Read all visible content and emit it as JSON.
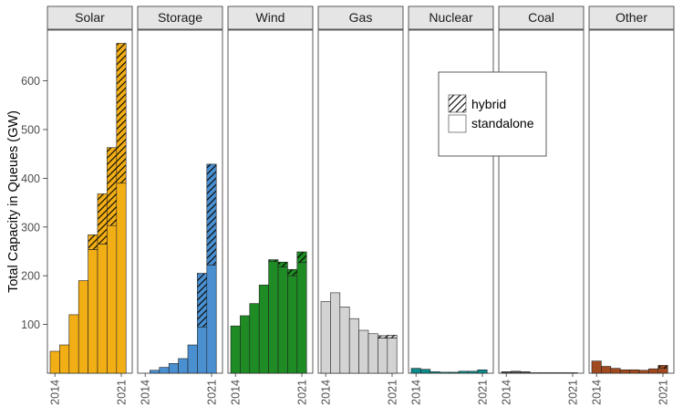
{
  "chart_data": {
    "type": "bar",
    "stacked": true,
    "faceted": true,
    "ylabel": "Total Capacity in Queues (GW)",
    "xlabel": "",
    "years": [
      2014,
      2015,
      2016,
      2017,
      2018,
      2019,
      2020,
      2021
    ],
    "x_tick_labels": [
      "2014",
      "2021"
    ],
    "y_ticks": [
      100,
      200,
      300,
      400,
      500,
      600
    ],
    "ylim": [
      0,
      700
    ],
    "grid": false,
    "legend": {
      "placement": "inside, upper area spanning Nuclear and Coal panels",
      "entries": [
        {
          "label": "hybrid",
          "pattern": "hatched"
        },
        {
          "label": "standalone",
          "pattern": "solid"
        }
      ]
    },
    "facets": [
      {
        "name": "Solar",
        "color": "#F2AE15",
        "standalone": [
          45,
          58,
          120,
          190,
          254,
          265,
          303,
          390
        ],
        "hybrid": [
          0,
          0,
          0,
          0,
          30,
          103,
          160,
          287
        ]
      },
      {
        "name": "Storage",
        "color": "#4A90D0",
        "standalone": [
          0,
          6,
          12,
          20,
          30,
          58,
          95,
          222
        ],
        "hybrid": [
          0,
          0,
          0,
          0,
          0,
          0,
          110,
          207
        ]
      },
      {
        "name": "Wind",
        "color": "#1E8B24",
        "standalone": [
          97,
          118,
          143,
          181,
          229,
          218,
          200,
          227
        ],
        "hybrid": [
          0,
          0,
          0,
          0,
          4,
          10,
          13,
          22
        ]
      },
      {
        "name": "Gas",
        "color": "#D3D3D3",
        "standalone": [
          147,
          165,
          136,
          112,
          88,
          81,
          72,
          72
        ],
        "hybrid": [
          0,
          0,
          0,
          0,
          0,
          0,
          5,
          6
        ]
      },
      {
        "name": "Nuclear",
        "color": "#0E8A8A",
        "standalone": [
          10,
          8,
          3,
          2,
          2,
          4,
          4,
          7
        ],
        "hybrid": [
          0,
          0,
          0,
          0,
          0,
          0,
          0,
          0
        ]
      },
      {
        "name": "Coal",
        "color": "#4D4D4D",
        "standalone": [
          3,
          4,
          3,
          1,
          1,
          1,
          1,
          1
        ],
        "hybrid": [
          0,
          0,
          0,
          0,
          0,
          0,
          0,
          0
        ]
      },
      {
        "name": "Other",
        "color": "#A24A1F",
        "standalone": [
          25,
          14,
          10,
          7,
          7,
          6,
          9,
          10
        ],
        "hybrid": [
          0,
          0,
          0,
          0,
          0,
          0,
          0,
          6
        ]
      }
    ]
  }
}
